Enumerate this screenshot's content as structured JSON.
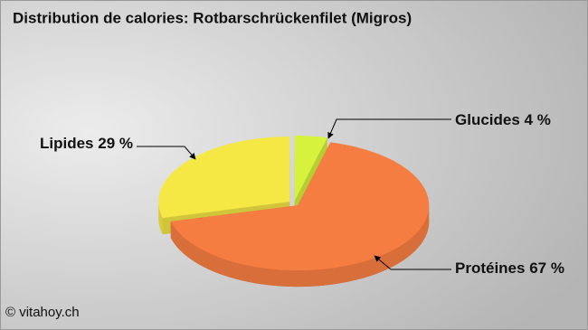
{
  "chart_data": {
    "type": "pie",
    "title": "Distribution de calories: Rotbarschrückenfilet (Migros)",
    "categories": [
      "Glucides",
      "Protéines",
      "Lipides"
    ],
    "values": [
      4,
      67,
      29
    ],
    "value_labels": [
      "4 %",
      "67 %",
      "29 %"
    ],
    "colors": [
      "#d6f23c",
      "#f57d42",
      "#f5e744"
    ],
    "credit": "© vitahoy.ch"
  }
}
